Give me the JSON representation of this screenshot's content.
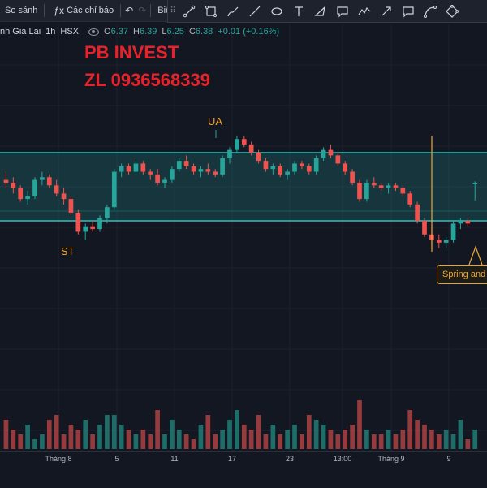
{
  "toolbar": {
    "compare_label": "So sánh",
    "indicators_label": "Các chỉ báo",
    "chart_label": "Biểu đồ",
    "undo_icon": "undo-icon",
    "redo_icon": "redo-icon",
    "fx_icon": "fx-icon"
  },
  "drawing_tools": [
    "trend-line-icon",
    "rectangle-icon",
    "brush-icon",
    "line-icon",
    "ellipse-icon",
    "text-icon",
    "triangle-pattern-icon",
    "callout-icon",
    "polyline-icon",
    "arrow-icon",
    "note-icon",
    "curve-icon",
    "rotated-rectangle-icon"
  ],
  "legend": {
    "symbol": "nh Gia Lai",
    "interval": "1h",
    "exchange": "HSX",
    "o_label": "O",
    "o_value": "6.37",
    "h_label": "H",
    "h_value": "6.39",
    "l_label": "L",
    "l_value": "6.25",
    "c_label": "C",
    "c_value": "6.38",
    "change": "+0.01 (+0.16%)"
  },
  "watermark": {
    "line1": "PB INVEST",
    "line2": "ZL 0936568339",
    "color": "#e8222a"
  },
  "annotations": {
    "ua": "UA",
    "st": "ST",
    "spring": "Spring and"
  },
  "x_axis": [
    "Tháng 8",
    "5",
    "11",
    "17",
    "23",
    "13:00",
    "Tháng 9",
    "9"
  ],
  "colors": {
    "background": "#131722",
    "up": "#26a69a",
    "down": "#ef5350",
    "channel": "#2bc4bc",
    "annotation": "#f0a62e"
  },
  "chart_data": {
    "type": "candlestick",
    "symbol": "nh Gia Lai",
    "interval": "1h",
    "channel": {
      "top": 6.6,
      "bottom": 6.1
    },
    "ylim": [
      5.5,
      7.15
    ],
    "candles": [
      [
        6.4,
        6.46,
        6.34,
        6.38
      ],
      [
        6.38,
        6.42,
        6.3,
        6.34
      ],
      [
        6.34,
        6.36,
        6.24,
        6.26
      ],
      [
        6.26,
        6.32,
        6.22,
        6.28
      ],
      [
        6.28,
        6.42,
        6.26,
        6.4
      ],
      [
        6.4,
        6.46,
        6.36,
        6.42
      ],
      [
        6.42,
        6.44,
        6.34,
        6.36
      ],
      [
        6.36,
        6.4,
        6.28,
        6.3
      ],
      [
        6.3,
        6.34,
        6.22,
        6.26
      ],
      [
        6.26,
        6.28,
        6.14,
        6.16
      ],
      [
        6.16,
        6.18,
        6.0,
        6.02
      ],
      [
        6.02,
        6.08,
        5.96,
        6.06
      ],
      [
        6.06,
        6.1,
        6.02,
        6.04
      ],
      [
        6.04,
        6.14,
        6.02,
        6.12
      ],
      [
        6.12,
        6.22,
        6.08,
        6.2
      ],
      [
        6.2,
        6.48,
        6.18,
        6.46
      ],
      [
        6.46,
        6.52,
        6.42,
        6.5
      ],
      [
        6.5,
        6.52,
        6.44,
        6.46
      ],
      [
        6.46,
        6.54,
        6.44,
        6.52
      ],
      [
        6.52,
        6.54,
        6.44,
        6.46
      ],
      [
        6.46,
        6.48,
        6.4,
        6.44
      ],
      [
        6.44,
        6.48,
        6.36,
        6.38
      ],
      [
        6.38,
        6.42,
        6.34,
        6.4
      ],
      [
        6.4,
        6.5,
        6.38,
        6.48
      ],
      [
        6.48,
        6.56,
        6.46,
        6.54
      ],
      [
        6.54,
        6.58,
        6.48,
        6.5
      ],
      [
        6.5,
        6.52,
        6.44,
        6.46
      ],
      [
        6.46,
        6.5,
        6.42,
        6.48
      ],
      [
        6.48,
        6.52,
        6.44,
        6.46
      ],
      [
        6.46,
        6.48,
        6.42,
        6.44
      ],
      [
        6.44,
        6.58,
        6.42,
        6.56
      ],
      [
        6.56,
        6.64,
        6.52,
        6.62
      ],
      [
        6.62,
        6.72,
        6.6,
        6.7
      ],
      [
        6.7,
        6.72,
        6.64,
        6.66
      ],
      [
        6.66,
        6.68,
        6.58,
        6.6
      ],
      [
        6.6,
        6.62,
        6.52,
        6.54
      ],
      [
        6.54,
        6.56,
        6.46,
        6.48
      ],
      [
        6.48,
        6.52,
        6.44,
        6.5
      ],
      [
        6.5,
        6.52,
        6.42,
        6.44
      ],
      [
        6.44,
        6.48,
        6.4,
        6.46
      ],
      [
        6.46,
        6.54,
        6.44,
        6.52
      ],
      [
        6.52,
        6.54,
        6.48,
        6.5
      ],
      [
        6.5,
        6.52,
        6.44,
        6.46
      ],
      [
        6.46,
        6.58,
        6.44,
        6.56
      ],
      [
        6.56,
        6.64,
        6.54,
        6.62
      ],
      [
        6.62,
        6.66,
        6.56,
        6.58
      ],
      [
        6.58,
        6.6,
        6.5,
        6.52
      ],
      [
        6.52,
        6.54,
        6.44,
        6.46
      ],
      [
        6.46,
        6.48,
        6.36,
        6.38
      ],
      [
        6.38,
        6.4,
        6.24,
        6.26
      ],
      [
        6.26,
        6.4,
        6.24,
        6.38
      ],
      [
        6.38,
        6.42,
        6.34,
        6.36
      ],
      [
        6.36,
        6.38,
        6.32,
        6.34
      ],
      [
        6.34,
        6.38,
        6.3,
        6.36
      ],
      [
        6.36,
        6.38,
        6.32,
        6.34
      ],
      [
        6.34,
        6.36,
        6.28,
        6.3
      ],
      [
        6.3,
        6.32,
        6.2,
        6.22
      ],
      [
        6.22,
        6.24,
        6.08,
        6.1
      ],
      [
        6.1,
        6.12,
        5.98,
        6.0
      ],
      [
        6.0,
        6.04,
        5.92,
        5.96
      ],
      [
        5.96,
        6.0,
        5.9,
        5.94
      ],
      [
        5.94,
        5.98,
        5.9,
        5.96
      ],
      [
        5.96,
        6.1,
        5.94,
        6.08
      ],
      [
        6.08,
        6.12,
        6.04,
        6.1
      ],
      [
        6.1,
        6.12,
        6.06,
        6.08
      ],
      [
        6.37,
        6.39,
        6.25,
        6.38
      ]
    ],
    "volume_scale": [
      3,
      4,
      3,
      5,
      2,
      3,
      6,
      4,
      3,
      5,
      4,
      6,
      3,
      5,
      4,
      7,
      5,
      4,
      3,
      4,
      3,
      5,
      3,
      6,
      4,
      3,
      2,
      5,
      4,
      3,
      4,
      6,
      8,
      5,
      4,
      4,
      3,
      5,
      3,
      4,
      5,
      3,
      4,
      6,
      5,
      4,
      3,
      4,
      5,
      7,
      4,
      3,
      3,
      4,
      3,
      4,
      5,
      6,
      5,
      4,
      3,
      4,
      3,
      3,
      2,
      4
    ]
  }
}
